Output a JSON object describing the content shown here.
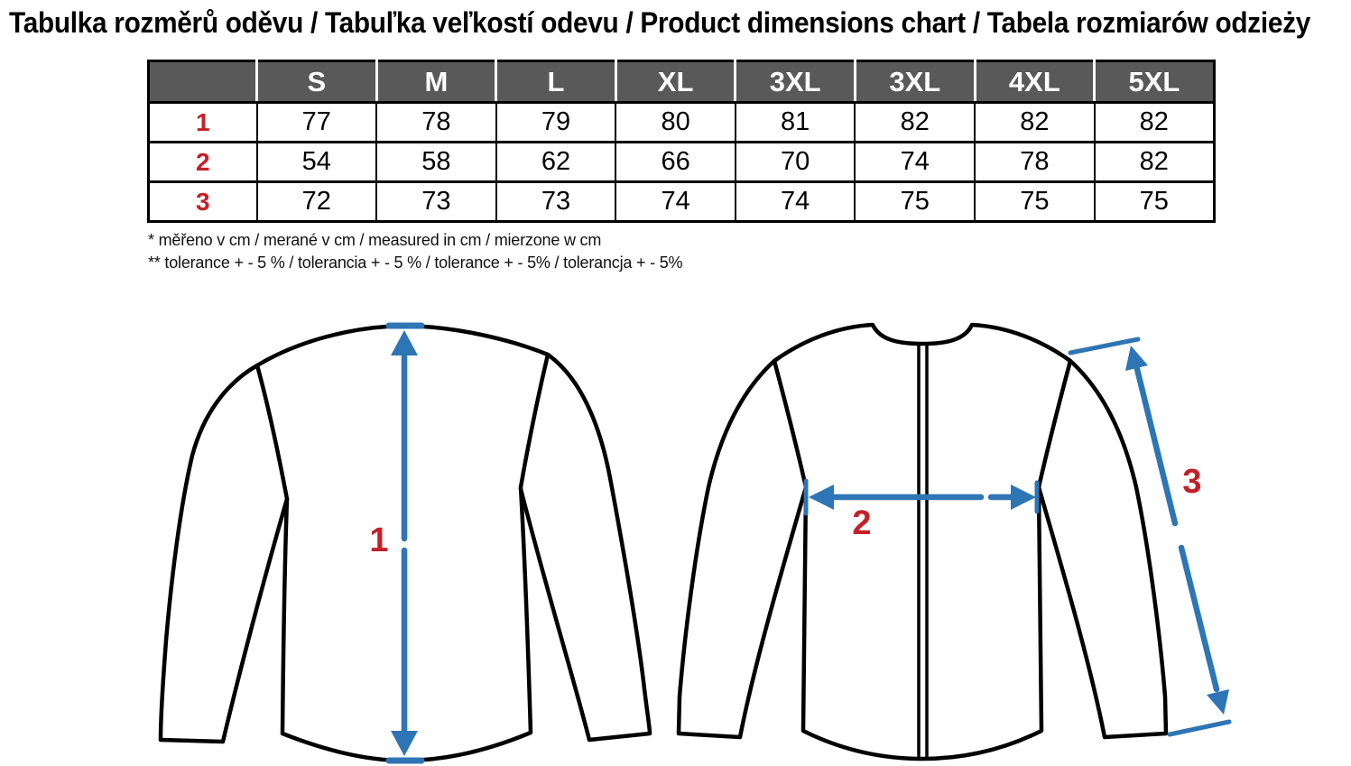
{
  "title": "Tabulka rozměrů oděvu / Tabuľka veľkostí odevu / Product dimensions chart / Tabela rozmiarów odzieży",
  "table": {
    "columns": [
      "",
      "S",
      "M",
      "L",
      "XL",
      "3XL",
      "3XL",
      "4XL",
      "5XL"
    ],
    "rows": [
      {
        "label": "1",
        "values": [
          "77",
          "78",
          "79",
          "80",
          "81",
          "82",
          "82",
          "82"
        ]
      },
      {
        "label": "2",
        "values": [
          "54",
          "58",
          "62",
          "66",
          "70",
          "74",
          "78",
          "82"
        ]
      },
      {
        "label": "3",
        "values": [
          "72",
          "73",
          "73",
          "74",
          "74",
          "75",
          "75",
          "75"
        ]
      }
    ]
  },
  "notes": [
    "* měřeno v cm / merané v cm / measured in cm / mierzone w cm",
    "** tolerance + - 5 % / tolerancia + - 5 % / tolerance + - 5% / tolerancja + - 5%"
  ],
  "diagrams": {
    "back_view": {
      "dimension_label": "1"
    },
    "front_view": {
      "chest_label": "2",
      "sleeve_label": "3"
    }
  },
  "colors": {
    "header_bg": "#595959",
    "row_label_red": "#c32128",
    "dimension_blue": "#2e75b5",
    "outline_black": "#000000"
  },
  "chart_data": {
    "type": "table",
    "title": "Product dimensions chart",
    "categories": [
      "S",
      "M",
      "L",
      "XL",
      "3XL",
      "3XL",
      "4XL",
      "5XL"
    ],
    "series": [
      {
        "name": "1 (length, cm)",
        "values": [
          77,
          78,
          79,
          80,
          81,
          82,
          82,
          82
        ]
      },
      {
        "name": "2 (chest width, cm)",
        "values": [
          54,
          58,
          62,
          66,
          70,
          74,
          78,
          82
        ]
      },
      {
        "name": "3 (sleeve, cm)",
        "values": [
          72,
          73,
          73,
          74,
          74,
          75,
          75,
          75
        ]
      }
    ]
  }
}
